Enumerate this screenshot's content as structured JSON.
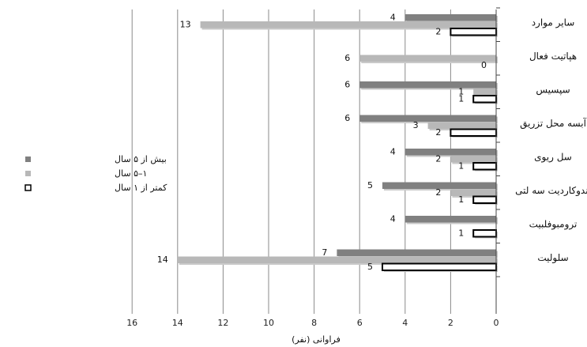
{
  "chart_data": {
    "type": "bar",
    "orientation": "horizontal",
    "x_direction": "right-to-left",
    "xlabel": "فراوانی (نفر)",
    "xlim": [
      0,
      16
    ],
    "x_ticks": [
      "0",
      "2",
      "4",
      "6",
      "8",
      "10",
      "12",
      "14",
      "16"
    ],
    "gridlines": true,
    "legend_position": "left",
    "categories": [
      "سایر موارد",
      "هپاتیت فعال",
      "سپسیس",
      "آبسه محل تزریق",
      "سل ریوی",
      "اندوکاردیت سه لتی",
      "ترومبوفلبیت",
      "سلولیت"
    ],
    "series": [
      {
        "name": "بیش از ۵ سال",
        "color": "#808080",
        "values": [
          4,
          null,
          6,
          6,
          4,
          5,
          4,
          7
        ],
        "labels": [
          "4",
          "",
          "6",
          "6",
          "4",
          "5",
          "4",
          "7"
        ]
      },
      {
        "name": "۱–۵ سال",
        "color": "#b8b8b8",
        "values": [
          13,
          6,
          1,
          3,
          2,
          2,
          null,
          14
        ],
        "labels": [
          "13",
          "6",
          "1",
          "3",
          "2",
          "2",
          "",
          "14"
        ]
      },
      {
        "name": "کمتر از ۱ سال",
        "color": "#ffffff",
        "values": [
          2,
          0,
          1,
          2,
          1,
          1,
          1,
          5
        ],
        "labels": [
          "2",
          "0",
          "1",
          "2",
          "1",
          "1",
          "1",
          "5"
        ]
      }
    ]
  }
}
